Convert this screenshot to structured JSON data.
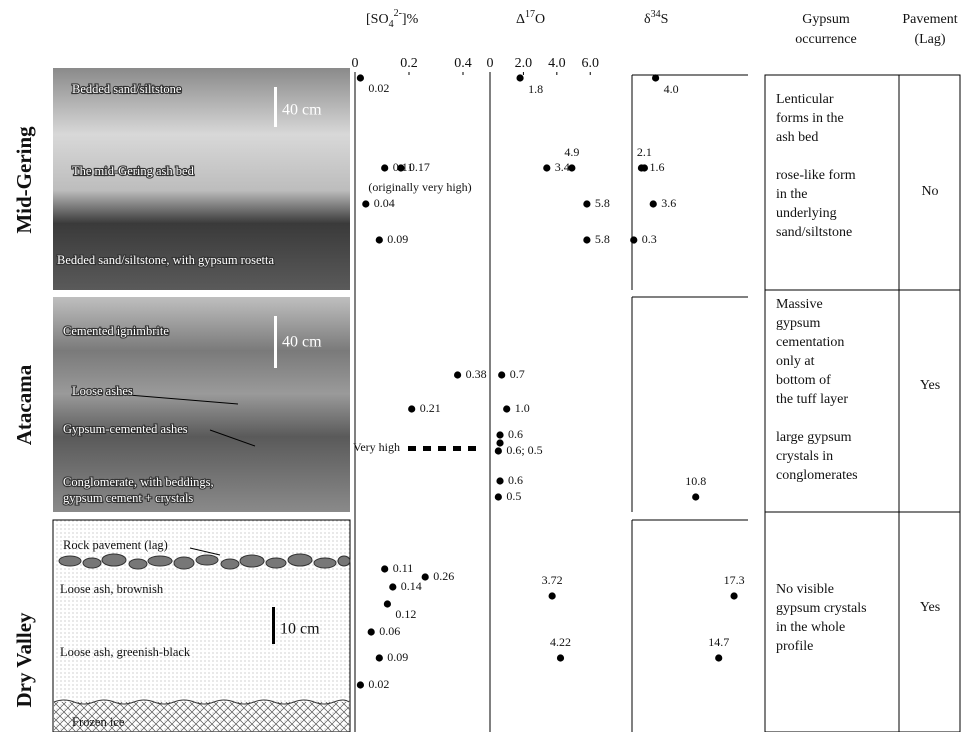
{
  "headers": {
    "so4": [
      "[SO",
      "4",
      "2-",
      "]%"
    ],
    "d17o": [
      "Δ",
      "17",
      "O"
    ],
    "d34s": [
      "δ",
      "34",
      "S"
    ],
    "gypsum": [
      "Gypsum",
      "occurrence"
    ],
    "pavement": [
      "Pavement",
      "(Lag)"
    ]
  },
  "so4_axis": {
    "xlim": [
      0,
      0.5
    ],
    "xticks": [
      0,
      0.2,
      0.4
    ]
  },
  "d17o_axis": {
    "xlim": [
      0,
      8.5
    ],
    "xticks": [
      0,
      {
        "value": 2,
        "label": "2.0"
      },
      {
        "value": 4,
        "label": "4.0"
      },
      {
        "value": 6,
        "label": "6.0"
      }
    ]
  },
  "d34s_axis": {
    "xlim": [
      0,
      20
    ]
  },
  "sections": [
    {
      "name": "Mid-Gering",
      "photo_labels": [
        "Bedded sand/siltstone",
        "The mid-Gering ash bed",
        "Bedded sand/siltstone, with gypsum rosetta"
      ],
      "scale_label": "40 cm",
      "so4": {
        "values": [
          0.02,
          0.11,
          0.17,
          0.04,
          0.09
        ]
      },
      "so4_note": "(originally very high)",
      "d17o": {
        "values": [
          1.8,
          4.9,
          3.4,
          5.8,
          5.8
        ]
      },
      "d34s": {
        "values": [
          4.0,
          2.1,
          1.6,
          3.6,
          0.3
        ],
        "value_labels": [
          "4.0",
          "2.1",
          "1.6",
          "3.6",
          "0.3"
        ]
      },
      "gypsum": [
        [
          "Lenticular",
          "forms in the",
          "ash bed"
        ],
        [
          "rose-like form",
          "in the",
          "underlying",
          "sand/siltstone"
        ]
      ],
      "pavement": "No"
    },
    {
      "name": "Atacama",
      "photo_labels": [
        "Cemented ignimbrite",
        "Loose ashes",
        "Gypsum-cemented ashes",
        "Conglomerate, with beddings,",
        "gypsum cement + crystals"
      ],
      "scale_label": "40 cm",
      "so4": {
        "values": [
          0.38,
          0.21
        ]
      },
      "so4_note": "Very high",
      "d17o": {
        "values": [
          0.7,
          1.0,
          0.6,
          [
            0.6,
            0.5
          ],
          0.6,
          0.5
        ],
        "value_labels": [
          "0.7",
          "1.0",
          "0.6",
          "0.6; 0.5",
          "0.6",
          "0.5"
        ]
      },
      "d34s": {
        "values": [
          10.8
        ]
      },
      "gypsum": [
        [
          "Massive",
          "gypsum",
          "cementation",
          "only at",
          "bottom of",
          "the tuff layer"
        ],
        [
          "large gypsum",
          "crystals in",
          "conglomerates"
        ]
      ],
      "pavement": "Yes"
    },
    {
      "name": "Dry Valley",
      "photo_labels": [
        "Rock pavement (lag)",
        "Loose ash, brownish",
        "Loose ash, greenish-black",
        "Frozen ice"
      ],
      "scale_label": "10 cm",
      "so4": {
        "values": [
          0.11,
          0.26,
          0.14,
          0.12,
          0.06,
          0.09,
          0.02
        ]
      },
      "d17o": {
        "values": [
          3.72,
          4.22
        ]
      },
      "d34s": {
        "values": [
          17.3,
          14.7
        ]
      },
      "gypsum": [
        [
          "No visible",
          "gypsum crystals",
          "in the whole",
          "profile"
        ]
      ],
      "pavement": "Yes"
    }
  ]
}
